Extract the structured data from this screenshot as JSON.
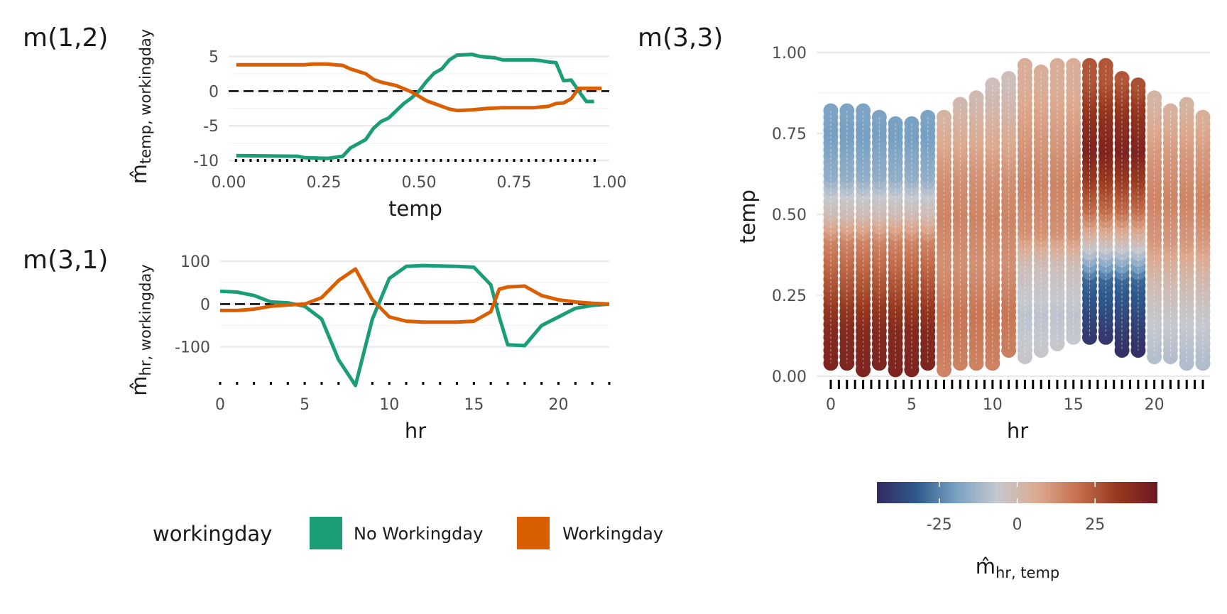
{
  "chart_data": [
    {
      "tag": "m(1,2)",
      "type": "line",
      "xlabel": "temp",
      "ylabel_main": "m̂",
      "ylabel_sub": "temp, workingday",
      "xlim": [
        0,
        1
      ],
      "ylim": [
        -10,
        7
      ],
      "x_ticks": [
        "0.00",
        "0.25",
        "0.50",
        "0.75",
        "1.00"
      ],
      "y_ticks": [
        "-10",
        "-5",
        "0",
        "5"
      ],
      "zero_line": true,
      "rug": true,
      "series": [
        {
          "name": "No Workingday",
          "color": "#1b9e77",
          "points": [
            [
              0.02,
              -9.3
            ],
            [
              0.18,
              -9.4
            ],
            [
              0.2,
              -9.6
            ],
            [
              0.26,
              -9.7
            ],
            [
              0.3,
              -9.4
            ],
            [
              0.32,
              -8.2
            ],
            [
              0.36,
              -7
            ],
            [
              0.38,
              -5.4
            ],
            [
              0.4,
              -4.4
            ],
            [
              0.42,
              -3.9
            ],
            [
              0.46,
              -1.8
            ],
            [
              0.48,
              -1
            ],
            [
              0.5,
              0
            ],
            [
              0.52,
              1.4
            ],
            [
              0.54,
              2.6
            ],
            [
              0.56,
              3.2
            ],
            [
              0.58,
              4.5
            ],
            [
              0.6,
              5.2
            ],
            [
              0.64,
              5.3
            ],
            [
              0.66,
              5
            ],
            [
              0.7,
              4.8
            ],
            [
              0.72,
              4.5
            ],
            [
              0.8,
              4.5
            ],
            [
              0.82,
              4.4
            ],
            [
              0.84,
              4.2
            ],
            [
              0.86,
              4.1
            ],
            [
              0.88,
              1.5
            ],
            [
              0.9,
              1.6
            ],
            [
              0.92,
              0
            ],
            [
              0.94,
              -1.5
            ],
            [
              0.96,
              -1.5
            ]
          ]
        },
        {
          "name": "Workingday",
          "color": "#d95f02",
          "points": [
            [
              0.02,
              3.8
            ],
            [
              0.2,
              3.8
            ],
            [
              0.22,
              3.9
            ],
            [
              0.26,
              3.9
            ],
            [
              0.3,
              3.7
            ],
            [
              0.32,
              3.2
            ],
            [
              0.36,
              2.5
            ],
            [
              0.38,
              1.7
            ],
            [
              0.4,
              1.3
            ],
            [
              0.44,
              0.8
            ],
            [
              0.48,
              -0.1
            ],
            [
              0.52,
              -1.4
            ],
            [
              0.54,
              -1.8
            ],
            [
              0.58,
              -2.6
            ],
            [
              0.6,
              -2.8
            ],
            [
              0.64,
              -2.7
            ],
            [
              0.68,
              -2.5
            ],
            [
              0.72,
              -2.4
            ],
            [
              0.8,
              -2.4
            ],
            [
              0.84,
              -2.2
            ],
            [
              0.86,
              -1.8
            ],
            [
              0.88,
              -1.7
            ],
            [
              0.9,
              -1.1
            ],
            [
              0.92,
              0.4
            ],
            [
              0.98,
              0.4
            ]
          ]
        }
      ]
    },
    {
      "tag": "m(3,1)",
      "type": "line",
      "xlabel": "hr",
      "ylabel_main": "m̂",
      "ylabel_sub": "hr, workingday",
      "xlim": [
        0,
        23
      ],
      "ylim": [
        -185,
        115
      ],
      "x_ticks": [
        "0",
        "5",
        "10",
        "15",
        "20"
      ],
      "y_ticks": [
        "-100",
        "0",
        "100"
      ],
      "zero_line": true,
      "rug": true,
      "series": [
        {
          "name": "No Workingday",
          "color": "#1b9e77",
          "points": [
            [
              0,
              30
            ],
            [
              1,
              28
            ],
            [
              2,
              20
            ],
            [
              3,
              5
            ],
            [
              4,
              3
            ],
            [
              5,
              -5
            ],
            [
              6,
              -35
            ],
            [
              7,
              -130
            ],
            [
              8,
              -190
            ],
            [
              9,
              -35
            ],
            [
              10,
              60
            ],
            [
              11,
              88
            ],
            [
              12,
              90
            ],
            [
              13,
              89
            ],
            [
              14,
              88
            ],
            [
              15,
              86
            ],
            [
              16,
              45
            ],
            [
              16.5,
              -30
            ],
            [
              17,
              -95
            ],
            [
              18,
              -97
            ],
            [
              19,
              -50
            ],
            [
              20,
              -30
            ],
            [
              21,
              -10
            ],
            [
              22,
              -3
            ],
            [
              23,
              0
            ]
          ]
        },
        {
          "name": "Workingday",
          "color": "#d95f02",
          "points": [
            [
              0,
              -15
            ],
            [
              1,
              -15
            ],
            [
              2,
              -12
            ],
            [
              3,
              -5
            ],
            [
              4,
              -2
            ],
            [
              5,
              0
            ],
            [
              6,
              15
            ],
            [
              7,
              55
            ],
            [
              8,
              82
            ],
            [
              9,
              10
            ],
            [
              10,
              -30
            ],
            [
              11,
              -40
            ],
            [
              12,
              -42
            ],
            [
              13,
              -42
            ],
            [
              14,
              -42
            ],
            [
              15,
              -40
            ],
            [
              16,
              -18
            ],
            [
              16.5,
              35
            ],
            [
              17,
              40
            ],
            [
              18,
              42
            ],
            [
              19,
              20
            ],
            [
              20,
              10
            ],
            [
              21,
              5
            ],
            [
              22,
              2
            ],
            [
              23,
              0
            ]
          ]
        }
      ]
    },
    {
      "tag": "m(3,3)",
      "type": "scatter",
      "xlabel": "hr",
      "ylabel": "temp",
      "xlim": [
        0,
        23
      ],
      "ylim": [
        0,
        1
      ],
      "x_ticks": [
        "0",
        "5",
        "10",
        "15",
        "20"
      ],
      "y_ticks": [
        "0.00",
        "0.25",
        "0.50",
        "0.75",
        "1.00"
      ],
      "rug": true,
      "point_step": 0.02,
      "color_scale": {
        "title_main": "m̂",
        "title_sub": "hr, temp",
        "min": -45,
        "max": 45,
        "ticks": [
          "-25",
          "0",
          "25"
        ],
        "colors": [
          "#352a5f",
          "#2e5b8e",
          "#7aa2c4",
          "#c5c8cf",
          "#dcaa90",
          "#c5704f",
          "#96381f",
          "#6e1820"
        ]
      },
      "columns": [
        {
          "hr": 0,
          "min": 0.04,
          "max": 0.82
        },
        {
          "hr": 1,
          "min": 0.04,
          "max": 0.82
        },
        {
          "hr": 2,
          "min": 0.02,
          "max": 0.82
        },
        {
          "hr": 3,
          "min": 0.04,
          "max": 0.8
        },
        {
          "hr": 4,
          "min": 0.02,
          "max": 0.78
        },
        {
          "hr": 5,
          "min": 0.02,
          "max": 0.78
        },
        {
          "hr": 6,
          "min": 0.04,
          "max": 0.8
        },
        {
          "hr": 7,
          "min": 0.02,
          "max": 0.8
        },
        {
          "hr": 8,
          "min": 0.04,
          "max": 0.84
        },
        {
          "hr": 9,
          "min": 0.04,
          "max": 0.86
        },
        {
          "hr": 10,
          "min": 0.04,
          "max": 0.9
        },
        {
          "hr": 11,
          "min": 0.08,
          "max": 0.92
        },
        {
          "hr": 12,
          "min": 0.06,
          "max": 0.96
        },
        {
          "hr": 13,
          "min": 0.08,
          "max": 0.94
        },
        {
          "hr": 14,
          "min": 0.1,
          "max": 0.96
        },
        {
          "hr": 15,
          "min": 0.12,
          "max": 0.96
        },
        {
          "hr": 16,
          "min": 0.12,
          "max": 0.96
        },
        {
          "hr": 17,
          "min": 0.12,
          "max": 0.96
        },
        {
          "hr": 18,
          "min": 0.08,
          "max": 0.92
        },
        {
          "hr": 19,
          "min": 0.08,
          "max": 0.9
        },
        {
          "hr": 20,
          "min": 0.06,
          "max": 0.86
        },
        {
          "hr": 21,
          "min": 0.06,
          "max": 0.82
        },
        {
          "hr": 22,
          "min": 0.04,
          "max": 0.84
        },
        {
          "hr": 23,
          "min": 0.04,
          "max": 0.8
        }
      ],
      "value_bands": [
        {
          "hr_from": 0,
          "hr_to": 6,
          "stops": [
            [
              0.02,
              40
            ],
            [
              0.15,
              38
            ],
            [
              0.3,
              25
            ],
            [
              0.42,
              15
            ],
            [
              0.5,
              0
            ],
            [
              0.55,
              -5
            ],
            [
              0.62,
              -15
            ],
            [
              0.75,
              -20
            ],
            [
              0.85,
              -18
            ]
          ]
        },
        {
          "hr_from": 7,
          "hr_to": 11,
          "stops": [
            [
              0.02,
              15
            ],
            [
              0.2,
              18
            ],
            [
              0.35,
              12
            ],
            [
              0.5,
              15
            ],
            [
              0.62,
              12
            ],
            [
              0.75,
              5
            ],
            [
              0.9,
              -2
            ]
          ]
        },
        {
          "hr_from": 12,
          "hr_to": 15,
          "stops": [
            [
              0.05,
              -5
            ],
            [
              0.2,
              -8
            ],
            [
              0.35,
              -2
            ],
            [
              0.45,
              12
            ],
            [
              0.6,
              15
            ],
            [
              0.75,
              10
            ],
            [
              0.9,
              5
            ]
          ]
        },
        {
          "hr_from": 16,
          "hr_to": 19,
          "stops": [
            [
              0.05,
              -45
            ],
            [
              0.15,
              -40
            ],
            [
              0.3,
              -30
            ],
            [
              0.38,
              -10
            ],
            [
              0.45,
              5
            ],
            [
              0.52,
              20
            ],
            [
              0.6,
              30
            ],
            [
              0.7,
              40
            ],
            [
              0.8,
              35
            ],
            [
              0.92,
              25
            ]
          ]
        },
        {
          "hr_from": 20,
          "hr_to": 23,
          "stops": [
            [
              0.05,
              -10
            ],
            [
              0.2,
              -5
            ],
            [
              0.3,
              0
            ],
            [
              0.42,
              10
            ],
            [
              0.55,
              15
            ],
            [
              0.7,
              10
            ],
            [
              0.85,
              2
            ]
          ]
        }
      ]
    }
  ],
  "legend": {
    "title": "workingday",
    "items": [
      {
        "label": "No Workingday",
        "color": "#1b9e77"
      },
      {
        "label": "Workingday",
        "color": "#d95f02"
      }
    ]
  }
}
